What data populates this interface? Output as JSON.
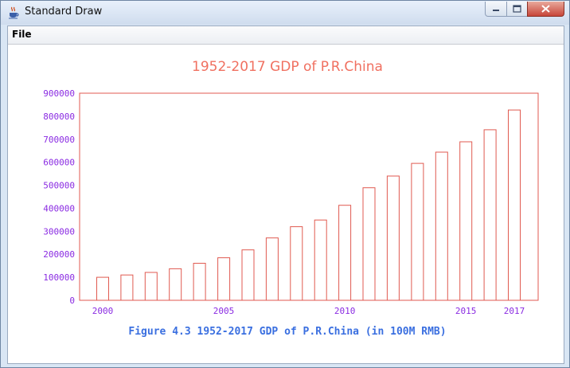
{
  "window": {
    "title": "Standard Draw"
  },
  "menu": {
    "file_label": "File"
  },
  "icons": {
    "app": "java-cup-icon",
    "minimize": "minimize-icon",
    "maximize": "maximize-icon",
    "close": "close-icon"
  },
  "colors": {
    "title": "#f07060",
    "bars": "#e05a50",
    "axis_labels": "#8a2be2",
    "caption": "#3a6fe0"
  },
  "chart_data": {
    "type": "bar",
    "title": "1952-2017 GDP of P.R.China",
    "caption": "Figure 4.3 1952-2017 GDP of P.R.China (in 100M RMB)",
    "x": [
      2000,
      2001,
      2002,
      2003,
      2004,
      2005,
      2006,
      2007,
      2008,
      2009,
      2010,
      2011,
      2012,
      2013,
      2014,
      2015,
      2016,
      2017
    ],
    "values": [
      100000,
      110000,
      121000,
      137000,
      161000,
      185000,
      219000,
      271000,
      320000,
      349000,
      413000,
      489000,
      540000,
      595000,
      644000,
      689000,
      741000,
      827000
    ],
    "ylim": [
      0,
      900000
    ],
    "yticks": [
      0,
      100000,
      200000,
      300000,
      400000,
      500000,
      600000,
      700000,
      800000,
      900000
    ],
    "xtick_labels": [
      2000,
      2005,
      2010,
      2015,
      2017
    ],
    "grid": false,
    "legend": "none"
  }
}
